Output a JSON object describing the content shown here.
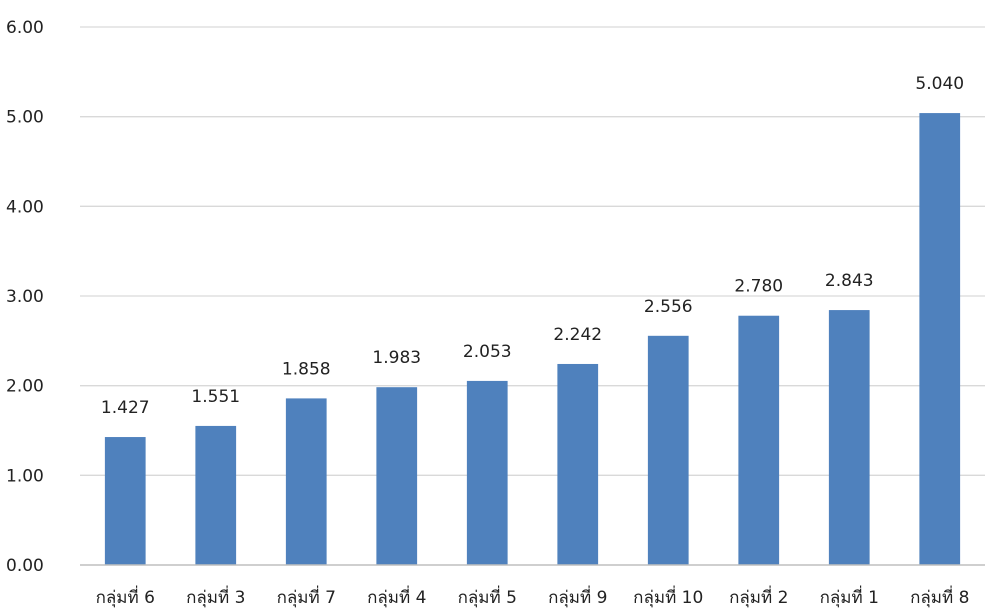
{
  "chart_data": {
    "type": "bar",
    "title": "",
    "xlabel": "",
    "ylabel": "",
    "categories": [
      "กลุ่มที่ 6",
      "กลุ่มที่ 3",
      "กลุ่มที่ 7",
      "กลุ่มที่ 4",
      "กลุ่มที่ 5",
      "กลุ่มที่ 9",
      "กลุ่มที่ 10",
      "กลุ่มที่ 2",
      "กลุ่มที่ 1",
      "กลุ่มที่ 8"
    ],
    "values": [
      1.427,
      1.551,
      1.858,
      1.983,
      2.053,
      2.242,
      2.556,
      2.78,
      2.843,
      5.04
    ],
    "value_labels": [
      "1.427",
      "1.551",
      "1.858",
      "1.983",
      "2.053",
      "2.242",
      "2.556",
      "2.780",
      "2.843",
      "5.040"
    ],
    "ylim": [
      0,
      6
    ],
    "yticks": [
      0,
      1,
      2,
      3,
      4,
      5,
      6
    ],
    "ytick_labels": [
      "0.00",
      "1.00",
      "2.00",
      "3.00",
      "4.00",
      "5.00",
      "6.00"
    ],
    "grid": true,
    "legend": "none",
    "colors": {
      "bar": "#4F81BD",
      "grid": "#D9D9D9",
      "axis": "#BFBFBF",
      "text": "#222222"
    }
  }
}
